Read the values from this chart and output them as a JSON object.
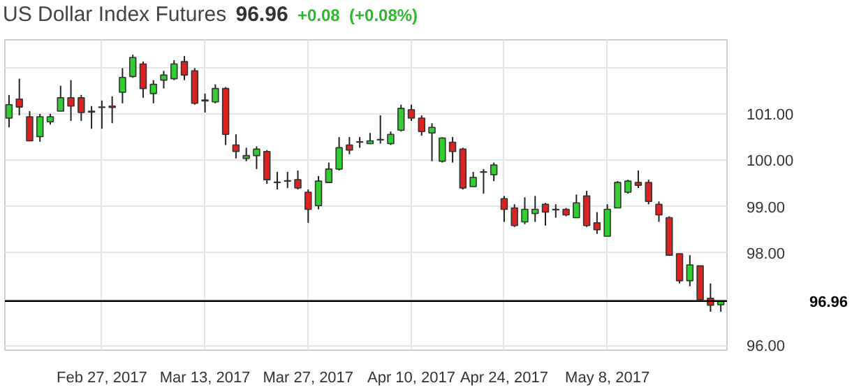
{
  "chart_data": {
    "type": "candlestick",
    "title": "US Dollar Index Futures",
    "annotations": [
      "96.96",
      "+0.08",
      "(+0.08%)"
    ],
    "categories": [
      null,
      null,
      null,
      null,
      null,
      null,
      null,
      null,
      null,
      "Feb 27, 2017",
      null,
      null,
      null,
      null,
      null,
      null,
      null,
      null,
      null,
      "Mar 13, 2017",
      null,
      null,
      null,
      null,
      null,
      null,
      null,
      null,
      null,
      "Mar 27, 2017",
      null,
      null,
      null,
      null,
      null,
      null,
      null,
      null,
      null,
      "Apr 10, 2017",
      null,
      null,
      null,
      null,
      null,
      null,
      null,
      null,
      "Apr 24, 2017",
      null,
      null,
      null,
      null,
      null,
      null,
      null,
      null,
      null,
      "May 8, 2017",
      null,
      null,
      null,
      null,
      null,
      null,
      null,
      null,
      null,
      null,
      null
    ],
    "ohlc": [
      [
        100.91,
        101.41,
        100.71,
        101.2
      ],
      [
        101.32,
        101.76,
        100.97,
        101.15
      ],
      [
        100.94,
        101.06,
        100.42,
        100.42
      ],
      [
        100.51,
        101.0,
        100.4,
        100.94
      ],
      [
        100.83,
        101.0,
        100.77,
        100.94
      ],
      [
        101.06,
        101.61,
        101.06,
        101.35
      ],
      [
        101.35,
        101.73,
        100.85,
        101.17
      ],
      [
        101.35,
        101.41,
        100.85,
        101.03
      ],
      [
        101.06,
        101.17,
        100.68,
        101.04
      ],
      [
        101.14,
        101.29,
        100.68,
        101.15
      ],
      [
        101.17,
        101.38,
        100.8,
        101.14
      ],
      [
        101.47,
        101.99,
        101.23,
        101.79
      ],
      [
        101.81,
        102.28,
        101.78,
        102.22
      ],
      [
        102.08,
        102.13,
        101.35,
        101.55
      ],
      [
        101.44,
        101.73,
        101.23,
        101.64
      ],
      [
        101.73,
        101.93,
        101.55,
        101.84
      ],
      [
        101.76,
        102.16,
        101.73,
        102.08
      ],
      [
        102.13,
        102.25,
        101.73,
        101.84
      ],
      [
        101.93,
        101.99,
        101.2,
        101.23
      ],
      [
        101.3,
        101.44,
        101.03,
        101.28
      ],
      [
        101.26,
        101.64,
        101.23,
        101.55
      ],
      [
        101.55,
        101.58,
        100.33,
        100.56
      ],
      [
        100.33,
        100.56,
        100.04,
        100.19
      ],
      [
        100.04,
        100.27,
        99.98,
        100.1
      ],
      [
        100.1,
        100.3,
        99.81,
        100.24
      ],
      [
        100.19,
        100.22,
        99.49,
        99.58
      ],
      [
        99.53,
        99.75,
        99.37,
        99.52
      ],
      [
        99.55,
        99.75,
        99.4,
        99.56
      ],
      [
        99.58,
        99.78,
        99.37,
        99.4
      ],
      [
        99.31,
        99.37,
        98.65,
        98.94
      ],
      [
        99.02,
        99.66,
        98.94,
        99.55
      ],
      [
        99.52,
        99.95,
        99.52,
        99.81
      ],
      [
        99.81,
        100.5,
        99.78,
        100.27
      ],
      [
        100.33,
        100.5,
        100.13,
        100.22
      ],
      [
        100.4,
        100.5,
        100.27,
        100.39
      ],
      [
        100.36,
        100.59,
        100.36,
        100.42
      ],
      [
        100.45,
        100.97,
        100.36,
        100.44
      ],
      [
        100.36,
        100.62,
        100.33,
        100.56
      ],
      [
        100.65,
        101.2,
        100.62,
        101.12
      ],
      [
        101.09,
        101.2,
        100.85,
        100.91
      ],
      [
        100.91,
        100.97,
        100.53,
        100.62
      ],
      [
        100.59,
        100.8,
        99.98,
        100.71
      ],
      [
        99.98,
        100.5,
        99.95,
        100.48
      ],
      [
        100.39,
        100.5,
        99.95,
        100.19
      ],
      [
        100.24,
        100.27,
        99.37,
        99.4
      ],
      [
        99.43,
        99.75,
        99.43,
        99.63
      ],
      [
        99.74,
        99.81,
        99.28,
        99.75
      ],
      [
        99.69,
        99.95,
        99.55,
        99.9
      ],
      [
        99.17,
        99.23,
        98.67,
        98.94
      ],
      [
        98.97,
        99.05,
        98.56,
        98.59
      ],
      [
        98.67,
        99.2,
        98.62,
        98.94
      ],
      [
        98.85,
        99.23,
        98.67,
        98.94
      ],
      [
        99.05,
        99.08,
        98.59,
        98.88
      ],
      [
        98.94,
        99.05,
        98.76,
        98.93
      ],
      [
        98.94,
        98.97,
        98.79,
        98.82
      ],
      [
        98.76,
        99.26,
        98.76,
        99.08
      ],
      [
        99.23,
        99.34,
        98.56,
        98.59
      ],
      [
        98.65,
        98.88,
        98.41,
        98.5
      ],
      [
        98.36,
        99.05,
        98.36,
        98.94
      ],
      [
        98.97,
        99.55,
        98.97,
        99.52
      ],
      [
        99.31,
        99.58,
        99.28,
        99.55
      ],
      [
        99.52,
        99.78,
        99.4,
        99.46
      ],
      [
        99.52,
        99.58,
        99.05,
        99.11
      ],
      [
        99.05,
        99.11,
        98.67,
        98.82
      ],
      [
        98.76,
        98.79,
        97.95,
        97.95
      ],
      [
        97.98,
        97.98,
        97.34,
        97.4
      ],
      [
        97.4,
        97.95,
        97.28,
        97.74
      ],
      [
        97.72,
        97.72,
        96.99,
        96.99
      ],
      [
        97.02,
        97.34,
        96.73,
        96.87
      ],
      [
        96.88,
        96.97,
        96.73,
        96.96
      ]
    ],
    "ylim": [
      95.9,
      102.6
    ],
    "yticks": [
      {
        "value": 96,
        "label": "96.00"
      },
      {
        "value": 97,
        "label": null
      },
      {
        "value": 98,
        "label": "98.00"
      },
      {
        "value": 99,
        "label": "99.00"
      },
      {
        "value": 100,
        "label": "100.00"
      },
      {
        "value": 101,
        "label": "101.00"
      },
      {
        "value": 102,
        "label": null
      }
    ],
    "ref_lines": [
      {
        "axis": "y",
        "value": 96.96,
        "label": "96.96",
        "color": "#000000"
      }
    ],
    "grid": true
  }
}
